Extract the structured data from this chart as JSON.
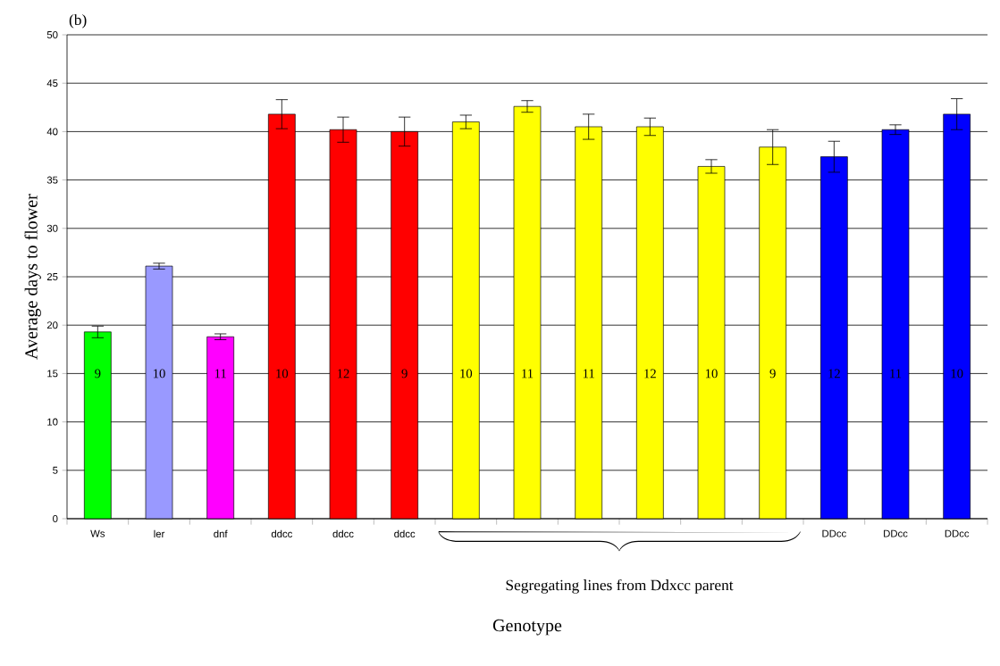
{
  "chart_data": {
    "type": "bar",
    "title": "(b)",
    "xlabel": "Genotype",
    "ylabel": "Average days to flower",
    "categories": [
      "Ws",
      "ler",
      "dnf",
      "ddcc",
      "ddcc",
      "ddcc",
      null,
      null,
      null,
      null,
      null,
      null,
      "DDcc",
      "DDcc",
      "DDcc"
    ],
    "values": [
      19.3,
      26.1,
      18.8,
      41.8,
      40.2,
      40.0,
      41.0,
      42.6,
      40.5,
      40.5,
      36.4,
      38.4,
      37.4,
      40.2,
      41.8
    ],
    "errors": [
      0.6,
      0.3,
      0.3,
      1.5,
      1.3,
      1.5,
      0.7,
      0.6,
      1.3,
      0.9,
      0.7,
      1.8,
      1.6,
      0.5,
      1.6
    ],
    "colors": [
      "#00ff00",
      "#9999ff",
      "#ff00ff",
      "#ff0000",
      "#ff0000",
      "#ff0000",
      "#ffff00",
      "#ffff00",
      "#ffff00",
      "#ffff00",
      "#ffff00",
      "#ffff00",
      "#0000ff",
      "#0000ff",
      "#0000ff"
    ],
    "ylim": [
      0,
      50
    ],
    "yticks": [
      0,
      5,
      10,
      15,
      20,
      25,
      30,
      35,
      40,
      45,
      50
    ],
    "grid": "y",
    "annotations": [
      "9",
      "10",
      "11",
      "10",
      "12",
      "9",
      "10",
      "11",
      "11",
      "12",
      "10",
      "9",
      "12",
      "11",
      "10",
      "Segregating lines from Ddxcc parent"
    ]
  }
}
